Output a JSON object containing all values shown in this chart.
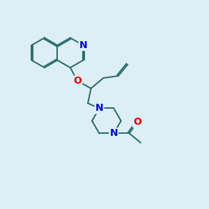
{
  "background_color": "#ddeef5",
  "bond_color": "#2d6e6e",
  "atom_colors": {
    "N": "#0000ee",
    "O": "#ee0000"
  },
  "bond_width": 1.5,
  "font_size_atom": 10
}
